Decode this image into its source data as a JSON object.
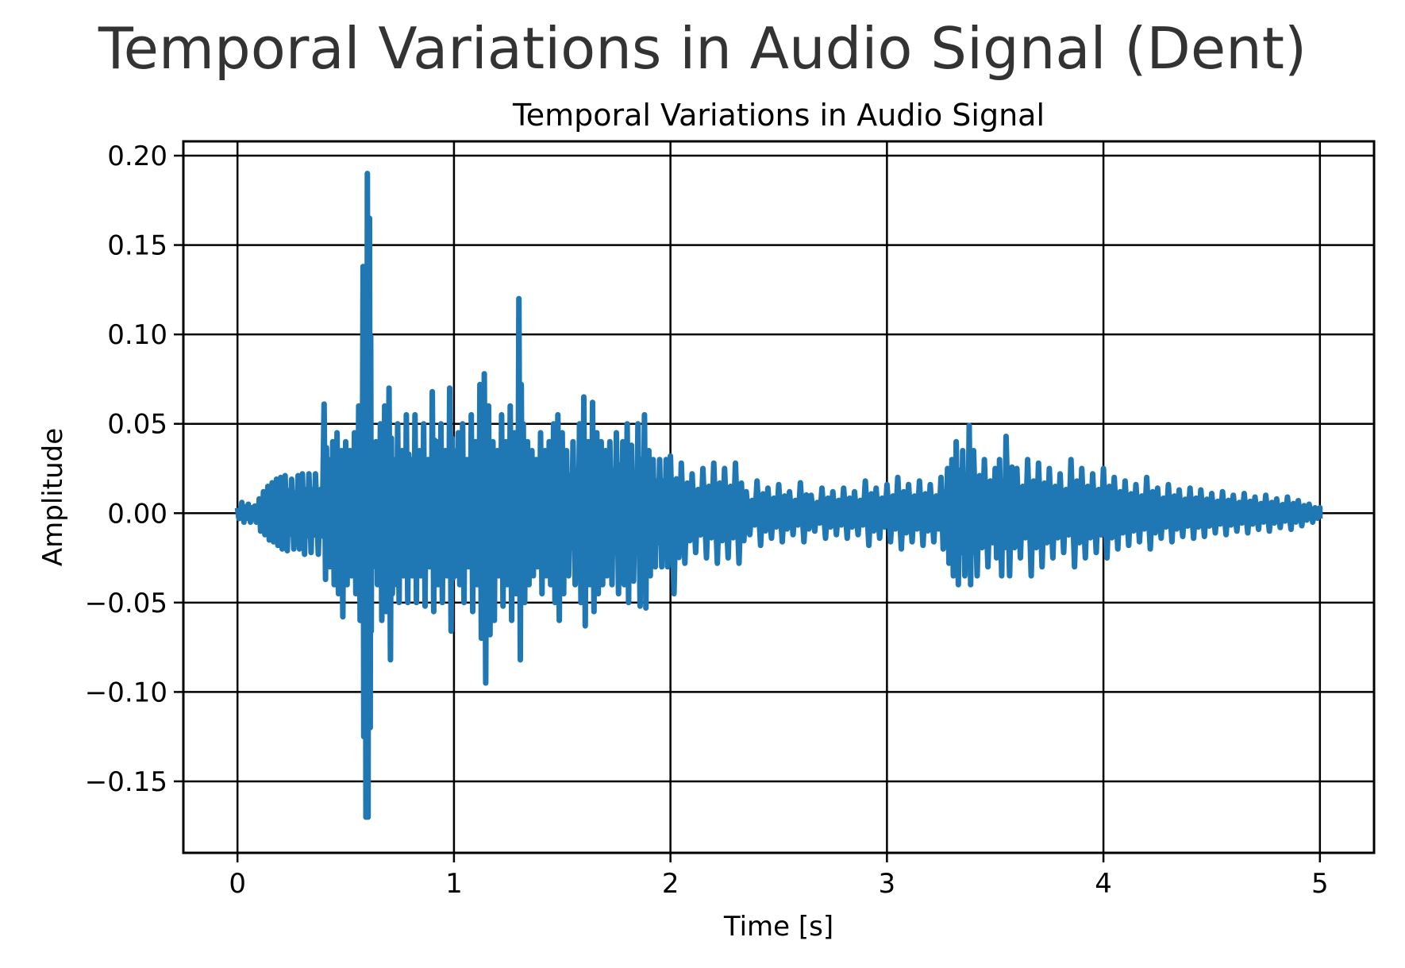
{
  "figure": {
    "suptitle": "Temporal Variations in Audio Signal (Dent)"
  },
  "chart_data": {
    "type": "line",
    "title": "Temporal Variations in Audio Signal",
    "xlabel": "Time [s]",
    "ylabel": "Amplitude",
    "xlim": [
      -0.25,
      5.25
    ],
    "ylim": [
      -0.19,
      0.208
    ],
    "x_ticks": [
      {
        "value": 0,
        "label": "0"
      },
      {
        "value": 1,
        "label": "1"
      },
      {
        "value": 2,
        "label": "2"
      },
      {
        "value": 3,
        "label": "3"
      },
      {
        "value": 4,
        "label": "4"
      },
      {
        "value": 5,
        "label": "5"
      }
    ],
    "y_ticks": [
      {
        "value": -0.15,
        "label": "−0.15"
      },
      {
        "value": -0.1,
        "label": "−0.10"
      },
      {
        "value": -0.05,
        "label": "−0.05"
      },
      {
        "value": 0.0,
        "label": "0.00"
      },
      {
        "value": 0.05,
        "label": "0.05"
      },
      {
        "value": 0.1,
        "label": "0.10"
      },
      {
        "value": 0.15,
        "label": "0.15"
      },
      {
        "value": 0.2,
        "label": "0.20"
      }
    ],
    "grid": true,
    "legend": "none",
    "series": [
      {
        "color": "#1f77b4",
        "x": [
          0.0,
          0.02,
          0.05,
          0.08,
          0.1,
          0.12,
          0.14,
          0.16,
          0.18,
          0.2,
          0.22,
          0.25,
          0.28,
          0.3,
          0.33,
          0.36,
          0.4,
          0.42,
          0.44,
          0.46,
          0.48,
          0.5,
          0.52,
          0.54,
          0.56,
          0.58,
          0.59,
          0.6,
          0.61,
          0.62,
          0.64,
          0.66,
          0.68,
          0.7,
          0.72,
          0.74,
          0.76,
          0.78,
          0.8,
          0.82,
          0.84,
          0.86,
          0.88,
          0.9,
          0.92,
          0.94,
          0.96,
          0.98,
          1.0,
          1.02,
          1.04,
          1.06,
          1.08,
          1.1,
          1.12,
          1.14,
          1.16,
          1.18,
          1.2,
          1.22,
          1.24,
          1.26,
          1.28,
          1.3,
          1.32,
          1.34,
          1.36,
          1.38,
          1.4,
          1.42,
          1.44,
          1.46,
          1.48,
          1.5,
          1.52,
          1.55,
          1.58,
          1.6,
          1.62,
          1.64,
          1.66,
          1.68,
          1.7,
          1.72,
          1.75,
          1.78,
          1.8,
          1.82,
          1.85,
          1.88,
          1.9,
          1.92,
          1.95,
          1.98,
          2.0,
          2.05,
          2.1,
          2.15,
          2.2,
          2.25,
          2.3,
          2.35,
          2.4,
          2.45,
          2.5,
          2.55,
          2.6,
          2.65,
          2.7,
          2.75,
          2.8,
          2.85,
          2.9,
          2.95,
          3.0,
          3.05,
          3.1,
          3.15,
          3.2,
          3.25,
          3.28,
          3.3,
          3.32,
          3.35,
          3.38,
          3.4,
          3.45,
          3.5,
          3.52,
          3.55,
          3.6,
          3.65,
          3.7,
          3.75,
          3.8,
          3.85,
          3.9,
          3.95,
          4.0,
          4.05,
          4.1,
          4.15,
          4.2,
          4.25,
          4.3,
          4.35,
          4.4,
          4.45,
          4.5,
          4.55,
          4.6,
          4.65,
          4.7,
          4.75,
          4.8,
          4.85,
          4.9,
          4.95,
          5.0
        ],
        "y_max": [
          0.003,
          0.006,
          0.005,
          0.004,
          0.008,
          0.012,
          0.015,
          0.017,
          0.019,
          0.02,
          0.021,
          0.019,
          0.021,
          0.022,
          0.022,
          0.022,
          0.061,
          0.03,
          0.04,
          0.045,
          0.035,
          0.04,
          0.035,
          0.045,
          0.06,
          0.138,
          0.12,
          0.19,
          0.165,
          0.03,
          0.04,
          0.05,
          0.06,
          0.07,
          0.03,
          0.05,
          0.035,
          0.055,
          0.03,
          0.055,
          0.035,
          0.05,
          0.03,
          0.068,
          0.04,
          0.05,
          0.035,
          0.07,
          0.035,
          0.045,
          0.05,
          0.03,
          0.055,
          0.04,
          0.072,
          0.078,
          0.06,
          0.04,
          0.035,
          0.055,
          0.04,
          0.06,
          0.045,
          0.12,
          0.05,
          0.04,
          0.035,
          0.03,
          0.045,
          0.035,
          0.04,
          0.05,
          0.055,
          0.045,
          0.035,
          0.04,
          0.05,
          0.065,
          0.04,
          0.062,
          0.045,
          0.04,
          0.035,
          0.04,
          0.045,
          0.04,
          0.05,
          0.038,
          0.05,
          0.055,
          0.035,
          0.03,
          0.03,
          0.03,
          0.032,
          0.028,
          0.022,
          0.025,
          0.028,
          0.025,
          0.028,
          0.012,
          0.018,
          0.014,
          0.016,
          0.012,
          0.017,
          0.01,
          0.014,
          0.012,
          0.014,
          0.012,
          0.018,
          0.014,
          0.016,
          0.02,
          0.016,
          0.018,
          0.016,
          0.02,
          0.025,
          0.03,
          0.04,
          0.035,
          0.049,
          0.035,
          0.03,
          0.025,
          0.03,
          0.043,
          0.025,
          0.03,
          0.028,
          0.025,
          0.022,
          0.03,
          0.025,
          0.022,
          0.025,
          0.02,
          0.018,
          0.016,
          0.02,
          0.014,
          0.016,
          0.013,
          0.014,
          0.013,
          0.011,
          0.012,
          0.01,
          0.011,
          0.009,
          0.01,
          0.008,
          0.009,
          0.007,
          0.005,
          0.003
        ],
        "y_min": [
          -0.003,
          -0.005,
          -0.005,
          -0.005,
          -0.01,
          -0.012,
          -0.015,
          -0.016,
          -0.018,
          -0.02,
          -0.021,
          -0.02,
          -0.02,
          -0.023,
          -0.022,
          -0.023,
          -0.037,
          -0.03,
          -0.04,
          -0.045,
          -0.058,
          -0.04,
          -0.035,
          -0.045,
          -0.06,
          -0.125,
          -0.17,
          -0.17,
          -0.12,
          -0.03,
          -0.04,
          -0.06,
          -0.055,
          -0.082,
          -0.04,
          -0.05,
          -0.035,
          -0.05,
          -0.035,
          -0.05,
          -0.035,
          -0.052,
          -0.03,
          -0.055,
          -0.04,
          -0.05,
          -0.035,
          -0.066,
          -0.035,
          -0.04,
          -0.05,
          -0.03,
          -0.055,
          -0.04,
          -0.07,
          -0.095,
          -0.068,
          -0.06,
          -0.035,
          -0.052,
          -0.04,
          -0.06,
          -0.045,
          -0.082,
          -0.05,
          -0.04,
          -0.035,
          -0.03,
          -0.045,
          -0.035,
          -0.04,
          -0.05,
          -0.06,
          -0.045,
          -0.035,
          -0.04,
          -0.05,
          -0.063,
          -0.04,
          -0.055,
          -0.045,
          -0.04,
          -0.035,
          -0.04,
          -0.045,
          -0.04,
          -0.05,
          -0.038,
          -0.052,
          -0.053,
          -0.035,
          -0.03,
          -0.03,
          -0.03,
          -0.045,
          -0.028,
          -0.022,
          -0.025,
          -0.028,
          -0.025,
          -0.028,
          -0.012,
          -0.018,
          -0.014,
          -0.016,
          -0.012,
          -0.016,
          -0.01,
          -0.014,
          -0.012,
          -0.014,
          -0.012,
          -0.018,
          -0.014,
          -0.016,
          -0.02,
          -0.016,
          -0.018,
          -0.016,
          -0.02,
          -0.028,
          -0.035,
          -0.04,
          -0.035,
          -0.04,
          -0.035,
          -0.03,
          -0.025,
          -0.035,
          -0.035,
          -0.025,
          -0.035,
          -0.03,
          -0.025,
          -0.022,
          -0.03,
          -0.025,
          -0.022,
          -0.025,
          -0.02,
          -0.018,
          -0.016,
          -0.02,
          -0.014,
          -0.016,
          -0.013,
          -0.014,
          -0.013,
          -0.011,
          -0.012,
          -0.01,
          -0.011,
          -0.009,
          -0.01,
          -0.008,
          -0.009,
          -0.007,
          -0.005,
          -0.003
        ]
      }
    ]
  }
}
